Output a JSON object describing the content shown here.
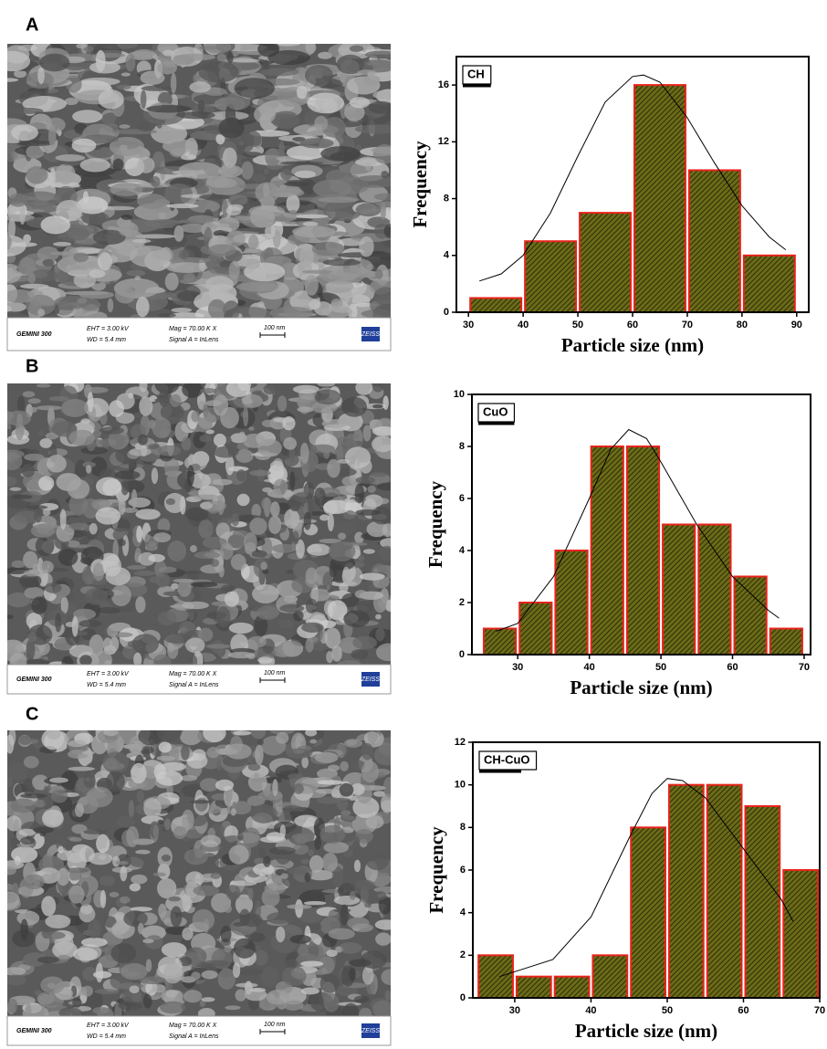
{
  "panels": [
    {
      "label": "A",
      "sem": [
        "GEMINI 300",
        "EHT = 3.00 kV",
        "WD = 5.4 mm",
        "Mag = 70.00 K X",
        "Signal A = InLens",
        "100 nm",
        "ZEISS"
      ]
    },
    {
      "label": "B",
      "sem": [
        "GEMINI 300",
        "EHT = 3.00 kV",
        "WD = 5.4 mm",
        "Mag = 70.00 K X",
        "Signal A = InLens",
        "100 nm",
        "ZEISS"
      ]
    },
    {
      "label": "C",
      "sem": [
        "GEMINI 300",
        "EHT = 3.00 kV",
        "WD = 5.4 mm",
        "Mag = 70.00 K X",
        "Signal A = InLens",
        "100 nm",
        "ZEISS"
      ]
    }
  ],
  "chart_data": [
    {
      "type": "histogram",
      "legend": "CH",
      "xlabel": "Particle size (nm)",
      "ylabel": "Frequency",
      "bins": [
        30,
        40,
        50,
        60,
        70,
        80,
        90
      ],
      "values": [
        1,
        5,
        7,
        16,
        10,
        4
      ],
      "color": "#5c5c14",
      "edgecolor": "#e8231c",
      "xlim": [
        27.8,
        92.2
      ],
      "xticks": [
        30,
        40,
        50,
        60,
        70,
        80,
        90
      ],
      "ylim": [
        0,
        18
      ],
      "yticks": [
        0,
        4,
        8,
        12,
        16
      ],
      "fit": {
        "x": [
          32,
          36,
          40,
          45,
          50,
          55,
          60,
          62,
          65,
          70,
          75,
          80,
          85,
          88
        ],
        "y": [
          2.2,
          2.7,
          4,
          7,
          11,
          14.8,
          16.6,
          16.7,
          16.2,
          13.7,
          10.5,
          7.5,
          5.3,
          4.4
        ]
      }
    },
    {
      "type": "histogram",
      "legend": "CuO",
      "xlabel": "Particle size (nm)",
      "ylabel": "Frequency",
      "bins": [
        25,
        30,
        35,
        40,
        45,
        50,
        55,
        60,
        65,
        70
      ],
      "values": [
        1,
        2,
        4,
        8,
        8,
        5,
        5,
        3,
        1
      ],
      "color": "#5c5c14",
      "edgecolor": "#e8231c",
      "xlim": [
        23.6,
        70.9
      ],
      "xticks": [
        30,
        40,
        50,
        60,
        70
      ],
      "ylim": [
        0,
        10
      ],
      "yticks": [
        0,
        2,
        4,
        6,
        8,
        10
      ],
      "fit": {
        "x": [
          27,
          30,
          35,
          40,
          43,
          45.5,
          48,
          50,
          55,
          60,
          65,
          66.5
        ],
        "y": [
          0.9,
          1.2,
          3,
          6,
          7.9,
          8.65,
          8.3,
          7.4,
          5,
          3,
          1.7,
          1.4
        ]
      }
    },
    {
      "type": "histogram",
      "legend": "CH-CuO",
      "xlabel": "Particle size (nm)",
      "ylabel": "Frequency",
      "bins": [
        25,
        30,
        35,
        40,
        45,
        50,
        55,
        60,
        65,
        70
      ],
      "values": [
        2,
        1,
        1,
        2,
        8,
        10,
        10,
        9,
        6
      ],
      "color": "#5c5c14",
      "edgecolor": "#e8231c",
      "xlim": [
        24.5,
        70
      ],
      "xticks": [
        30,
        40,
        50,
        60,
        70
      ],
      "ylim": [
        0,
        12
      ],
      "yticks": [
        0,
        2,
        4,
        6,
        8,
        10,
        12
      ],
      "fit": {
        "x": [
          28,
          35,
          40,
          45,
          48,
          50,
          52,
          55,
          60,
          65,
          66.5
        ],
        "y": [
          1,
          1.8,
          3.8,
          7.5,
          9.6,
          10.3,
          10.2,
          9.4,
          7,
          4.6,
          3.6
        ]
      }
    }
  ]
}
